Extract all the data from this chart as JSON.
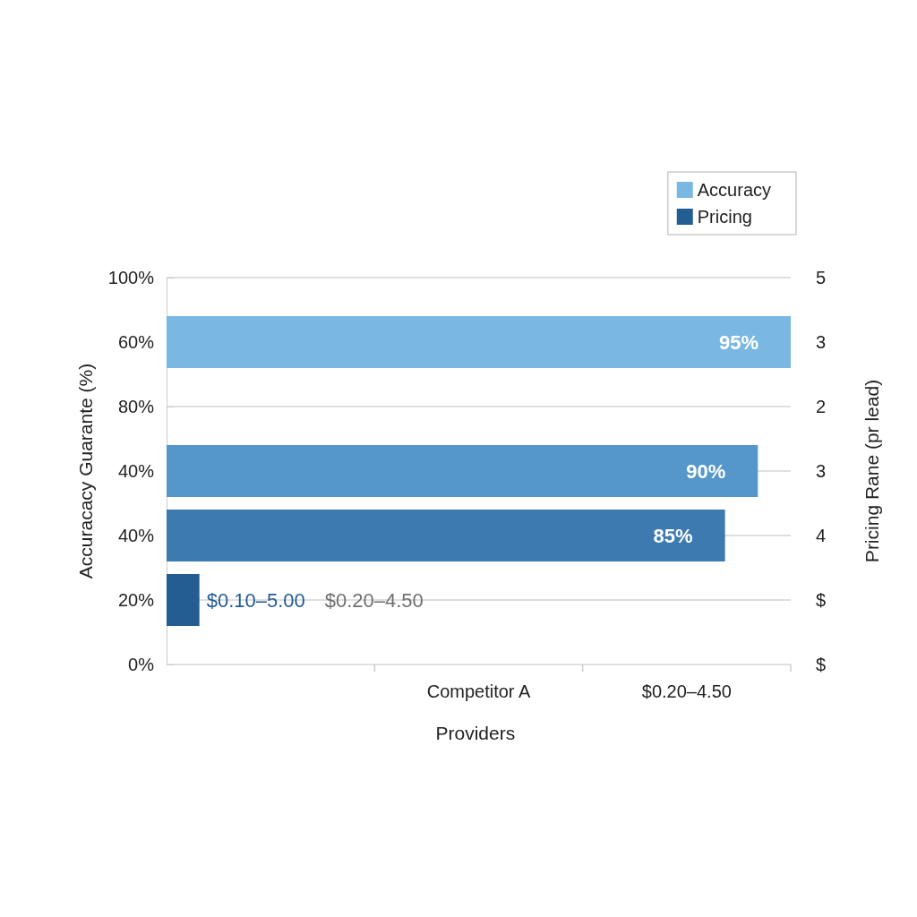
{
  "chart_data": {
    "type": "bar",
    "orientation": "horizontal",
    "categories": [
      "100%",
      "60%",
      "80%",
      "40%",
      "40%",
      "20%",
      "0%"
    ],
    "y2_categories": [
      "5",
      "3",
      "2",
      "3",
      "4",
      "$",
      "$"
    ],
    "xlabel": "Providers",
    "ylabel": "Accuracacy Guarante (%)",
    "y2label": "Pricing Rane (pr lead)",
    "series": [
      {
        "name": "Accuracy",
        "color": "#7ab8e3",
        "colors": [
          null,
          "#7ab8e3",
          null,
          "#5597cb",
          "#3c7ab0",
          null,
          null
        ],
        "values": [
          null,
          95,
          null,
          90,
          85,
          null,
          null
        ],
        "value_labels": [
          null,
          "95%",
          null,
          "90%",
          "85%",
          null,
          null
        ]
      },
      {
        "name": "Pricing",
        "color": "#245d92",
        "values": [
          null,
          null,
          null,
          null,
          null,
          5.0,
          null
        ],
        "value_labels": [
          null,
          null,
          null,
          null,
          null,
          "$0.10–5.00",
          null
        ]
      }
    ],
    "annotations": [
      "$0.20–4.50",
      "Competitor A",
      "$0.20–4.50"
    ],
    "grid": "y",
    "legend": "top right"
  }
}
